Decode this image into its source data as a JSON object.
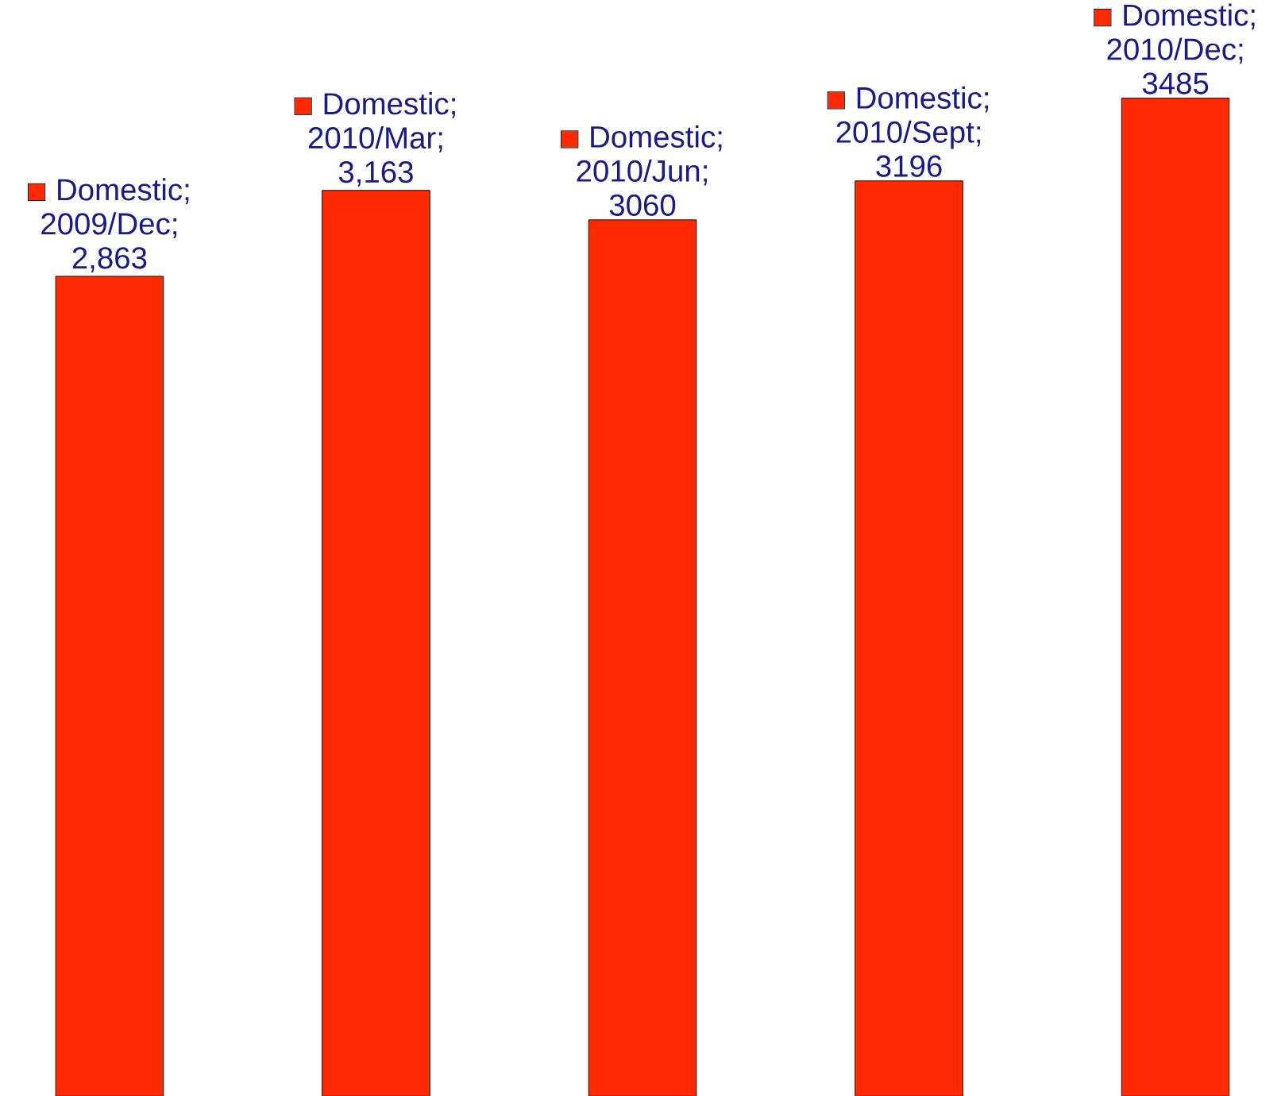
{
  "chart_data": {
    "type": "bar",
    "categories": [
      null,
      null,
      null,
      null,
      null
    ],
    "series": [
      {
        "color": "#ff2a00",
        "values": [
          2863,
          3163,
          3060,
          3196,
          3485
        ],
        "value_labels": [
          "Domestic; 2009/Dec; 2,863",
          "Domestic; 2010/Mar; 3,163",
          "Domestic; 2010/Jun; 3060",
          "Domestic; 2010/Sept; 3196",
          "Domestic; 2010/Dec; 3485"
        ]
      }
    ],
    "tick_labels": false
  }
}
